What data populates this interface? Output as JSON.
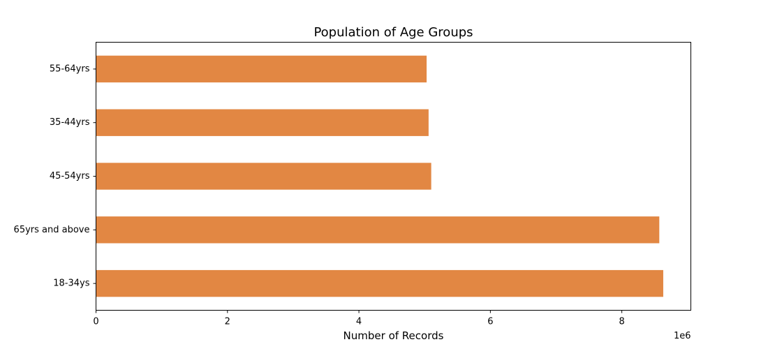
{
  "chart_data": {
    "type": "bar",
    "orientation": "horizontal",
    "title": "Population of Age Groups",
    "xlabel": "Number of Records",
    "ylabel": "",
    "x_offset_text": "1e6",
    "xlim": [
      0,
      9050000
    ],
    "x_ticks": [
      0,
      2000000,
      4000000,
      6000000,
      8000000
    ],
    "x_tick_labels": [
      "0",
      "2",
      "4",
      "6",
      "8"
    ],
    "categories": [
      "55-64yrs",
      "35-44yrs",
      "45-54yrs",
      "65yrs and above",
      "18-34ys"
    ],
    "values": [
      5030000,
      5060000,
      5100000,
      8570000,
      8630000
    ],
    "bar_color": "#e28743",
    "grid": false,
    "legend": "none"
  }
}
